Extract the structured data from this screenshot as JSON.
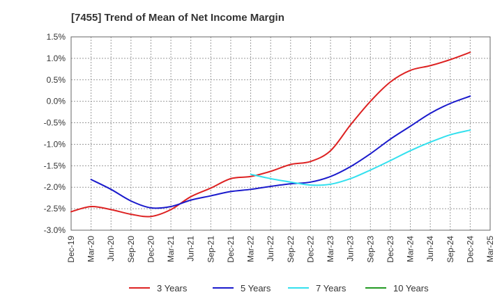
{
  "chart_data": {
    "type": "line",
    "title": "[7455]  Trend of Mean of Net Income Margin",
    "xlabel": "",
    "ylabel": "",
    "ylim": [
      -3.0,
      1.5
    ],
    "yticks": [
      "1.5%",
      "1.0%",
      "0.5%",
      "0.0%",
      "-0.5%",
      "-1.0%",
      "-1.5%",
      "-2.0%",
      "-2.5%",
      "-3.0%"
    ],
    "ytick_values": [
      1.5,
      1.0,
      0.5,
      0.0,
      -0.5,
      -1.0,
      -1.5,
      -2.0,
      -2.5,
      -3.0
    ],
    "categories": [
      "Dec-19",
      "Mar-20",
      "Jun-20",
      "Sep-20",
      "Dec-20",
      "Mar-21",
      "Jun-21",
      "Sep-21",
      "Dec-21",
      "Mar-22",
      "Jun-22",
      "Sep-22",
      "Dec-22",
      "Mar-23",
      "Jun-23",
      "Sep-23",
      "Dec-23",
      "Mar-24",
      "Jun-24",
      "Sep-24",
      "Dec-24",
      "Mar-25"
    ],
    "grid": true,
    "legend_position": "bottom",
    "series": [
      {
        "name": "3 Years",
        "color": "#dd2222",
        "values": [
          -2.57,
          -2.45,
          -2.52,
          -2.63,
          -2.68,
          -2.52,
          -2.22,
          -2.02,
          -1.8,
          -1.75,
          -1.63,
          -1.47,
          -1.4,
          -1.15,
          -0.55,
          0.0,
          0.45,
          0.72,
          0.83,
          0.97,
          1.14,
          null
        ]
      },
      {
        "name": "5 Years",
        "color": "#1a1acc",
        "values": [
          null,
          -1.82,
          -2.05,
          -2.32,
          -2.48,
          -2.45,
          -2.3,
          -2.2,
          -2.1,
          -2.05,
          -1.98,
          -1.92,
          -1.88,
          -1.75,
          -1.52,
          -1.22,
          -0.88,
          -0.58,
          -0.28,
          -0.05,
          0.12,
          null
        ]
      },
      {
        "name": "7 Years",
        "color": "#33e0ee",
        "values": [
          null,
          null,
          null,
          null,
          null,
          null,
          null,
          null,
          null,
          -1.7,
          -1.8,
          -1.88,
          -1.95,
          -1.93,
          -1.8,
          -1.6,
          -1.38,
          -1.15,
          -0.95,
          -0.78,
          -0.67,
          null
        ]
      },
      {
        "name": "10 Years",
        "color": "#229922",
        "values": [
          null,
          null,
          null,
          null,
          null,
          null,
          null,
          null,
          null,
          null,
          null,
          null,
          null,
          null,
          null,
          null,
          null,
          null,
          null,
          null,
          null,
          null
        ]
      }
    ]
  }
}
